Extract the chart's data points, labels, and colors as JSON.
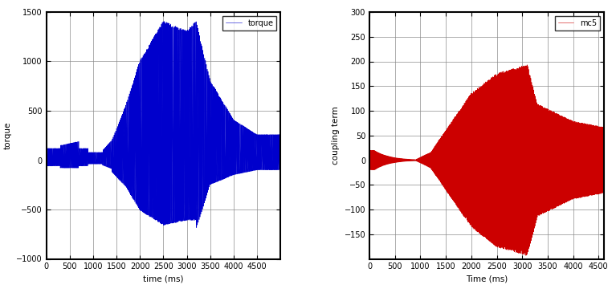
{
  "left_plot": {
    "xlabel": "time (ms)",
    "ylabel": "torque",
    "legend_label": "torque",
    "line_color": "#0000CC",
    "xlim": [
      0,
      5000
    ],
    "ylim": [
      -1000,
      1500
    ],
    "yticks": [
      -1000,
      -500,
      0,
      500,
      1000,
      1500
    ],
    "xticks": [
      0,
      500,
      1000,
      1500,
      2000,
      2500,
      3000,
      3500,
      4000,
      4500
    ]
  },
  "right_plot": {
    "xlabel": "Time (ms)",
    "ylabel": "coupling term",
    "legend_label": "mc5",
    "line_color": "#CC0000",
    "xlim": [
      0,
      4600
    ],
    "ylim": [
      -200,
      300
    ],
    "yticks": [
      -150,
      -100,
      -50,
      0,
      50,
      100,
      150,
      200,
      250,
      300
    ],
    "xticks": [
      0,
      500,
      1000,
      1500,
      2000,
      2500,
      3000,
      3500,
      4000,
      4500
    ]
  }
}
